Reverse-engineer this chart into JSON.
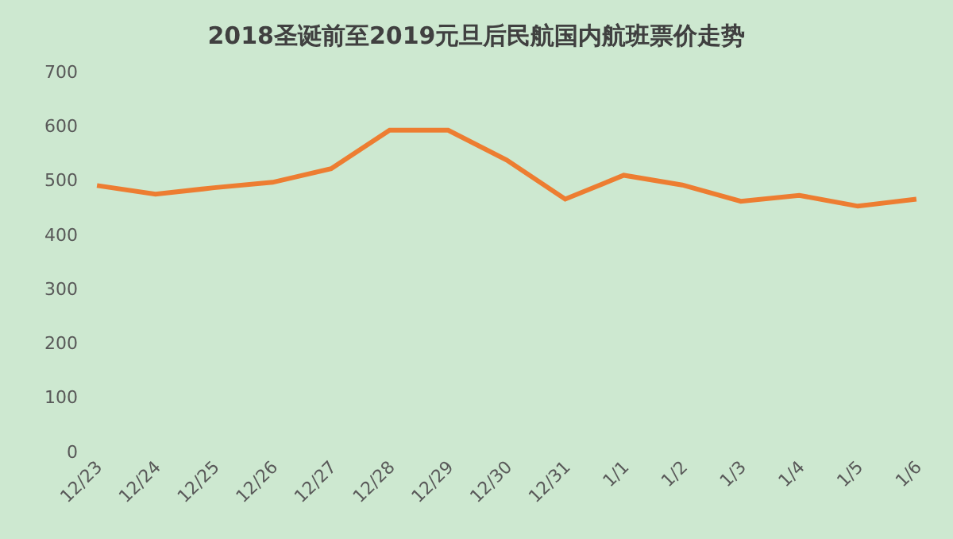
{
  "chart_data": {
    "type": "line",
    "title": "2018圣诞前至2019元旦后民航国内航班票价走势",
    "categories": [
      "12/23",
      "12/24",
      "12/25",
      "12/26",
      "12/27",
      "12/28",
      "12/29",
      "12/30",
      "12/31",
      "1/1",
      "1/2",
      "1/3",
      "1/4",
      "1/5",
      "1/6"
    ],
    "series": [
      {
        "color": "#ed7d31",
        "values": [
          490,
          474,
          486,
          496,
          521,
          592,
          592,
          537,
          465,
          509,
          491,
          461,
          472,
          452,
          465
        ]
      }
    ],
    "ylim": [
      0,
      700
    ],
    "yticks": [
      0,
      100,
      200,
      300,
      400,
      500,
      600,
      700
    ],
    "grid": false,
    "legend": false,
    "marker": "none",
    "line_style": "solid"
  }
}
